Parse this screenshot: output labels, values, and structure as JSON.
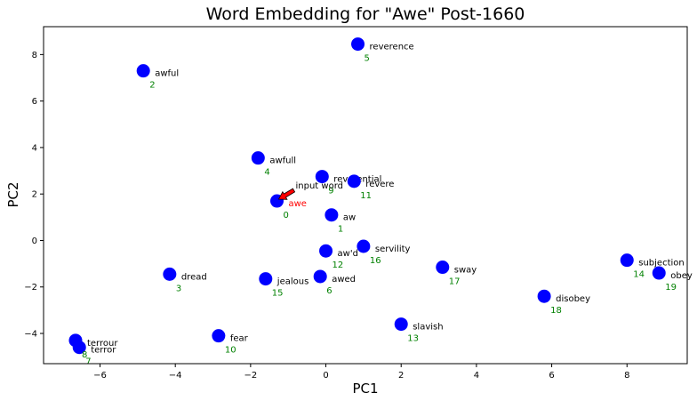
{
  "chart_data": {
    "type": "scatter",
    "title": "Word Embedding for \"Awe\" Post-1660",
    "xlabel": "PC1",
    "ylabel": "PC2",
    "xlim": [
      -7.5,
      9.6
    ],
    "ylim": [
      -5.3,
      9.2
    ],
    "xticks": [
      -6,
      -4,
      -2,
      0,
      2,
      4,
      6,
      8
    ],
    "yticks": [
      -4,
      -2,
      0,
      2,
      4,
      6,
      8
    ],
    "grid": false,
    "colors": {
      "marker": "#0000ff",
      "index": "#008000",
      "input_word": "#ff0000",
      "arrow": "#ff0000"
    },
    "annotation": {
      "text": "input word",
      "target_index": 0
    },
    "points": [
      {
        "index": "0",
        "word": "awe",
        "x": -1.3,
        "y": 1.7
      },
      {
        "index": "1",
        "word": "aw",
        "x": 0.15,
        "y": 1.1
      },
      {
        "index": "2",
        "word": "awful",
        "x": -4.85,
        "y": 7.3
      },
      {
        "index": "3",
        "word": "dread",
        "x": -4.15,
        "y": -1.45
      },
      {
        "index": "4",
        "word": "awfull",
        "x": -1.8,
        "y": 3.55
      },
      {
        "index": "5",
        "word": "reverence",
        "x": 0.85,
        "y": 8.45
      },
      {
        "index": "6",
        "word": "awed",
        "x": -0.15,
        "y": -1.55
      },
      {
        "index": "7",
        "word": "terror",
        "x": -6.55,
        "y": -4.6
      },
      {
        "index": "8",
        "word": "terrour",
        "x": -6.65,
        "y": -4.3
      },
      {
        "index": "9",
        "word": "reverential",
        "x": -0.1,
        "y": 2.75
      },
      {
        "index": "10",
        "word": "fear",
        "x": -2.85,
        "y": -4.1
      },
      {
        "index": "11",
        "word": "revere",
        "x": 0.75,
        "y": 2.55
      },
      {
        "index": "12",
        "word": "aw'd",
        "x": 0.0,
        "y": -0.45
      },
      {
        "index": "13",
        "word": "slavish",
        "x": 2.0,
        "y": -3.6
      },
      {
        "index": "14",
        "word": "subjection",
        "x": 8.0,
        "y": -0.85
      },
      {
        "index": "15",
        "word": "jealous",
        "x": -1.6,
        "y": -1.65
      },
      {
        "index": "16",
        "word": "servility",
        "x": 1.0,
        "y": -0.25
      },
      {
        "index": "17",
        "word": "sway",
        "x": 3.1,
        "y": -1.15
      },
      {
        "index": "18",
        "word": "disobey",
        "x": 5.8,
        "y": -2.4
      },
      {
        "index": "19",
        "word": "obey",
        "x": 8.85,
        "y": -1.4
      }
    ]
  }
}
